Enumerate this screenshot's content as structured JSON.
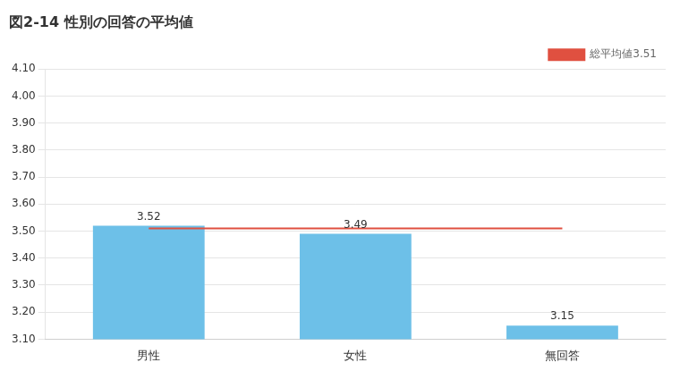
{
  "chart_data": {
    "type": "bar",
    "title": "図2-14 性別の回答の平均値",
    "categories": [
      "男性",
      "女性",
      "無回答"
    ],
    "series": [
      {
        "type": "bar",
        "color": "#6DC0E8",
        "values": [
          3.52,
          3.49,
          3.15
        ],
        "data_labels": true
      },
      {
        "name": "総平均値3.51",
        "type": "line",
        "line_style": "solid",
        "color": "#E05040",
        "values": [
          3.51,
          3.51,
          3.51
        ]
      }
    ],
    "ylim": [
      3.1,
      4.1
    ],
    "yticks": [
      {
        "value": 3.1,
        "label": "3.10"
      },
      {
        "value": 3.2,
        "label": "3.20"
      },
      {
        "value": 3.3,
        "label": "3.30"
      },
      {
        "value": 3.4,
        "label": "3.40"
      },
      {
        "value": 3.5,
        "label": "3.50"
      },
      {
        "value": 3.6,
        "label": "3.60"
      },
      {
        "value": 3.7,
        "label": "3.70"
      },
      {
        "value": 3.8,
        "label": "3.80"
      },
      {
        "value": 3.9,
        "label": "3.90"
      },
      {
        "value": 4.0,
        "label": "4.00"
      },
      {
        "value": 4.1,
        "label": "4.10"
      }
    ],
    "grid": true,
    "legend": "upper right"
  }
}
